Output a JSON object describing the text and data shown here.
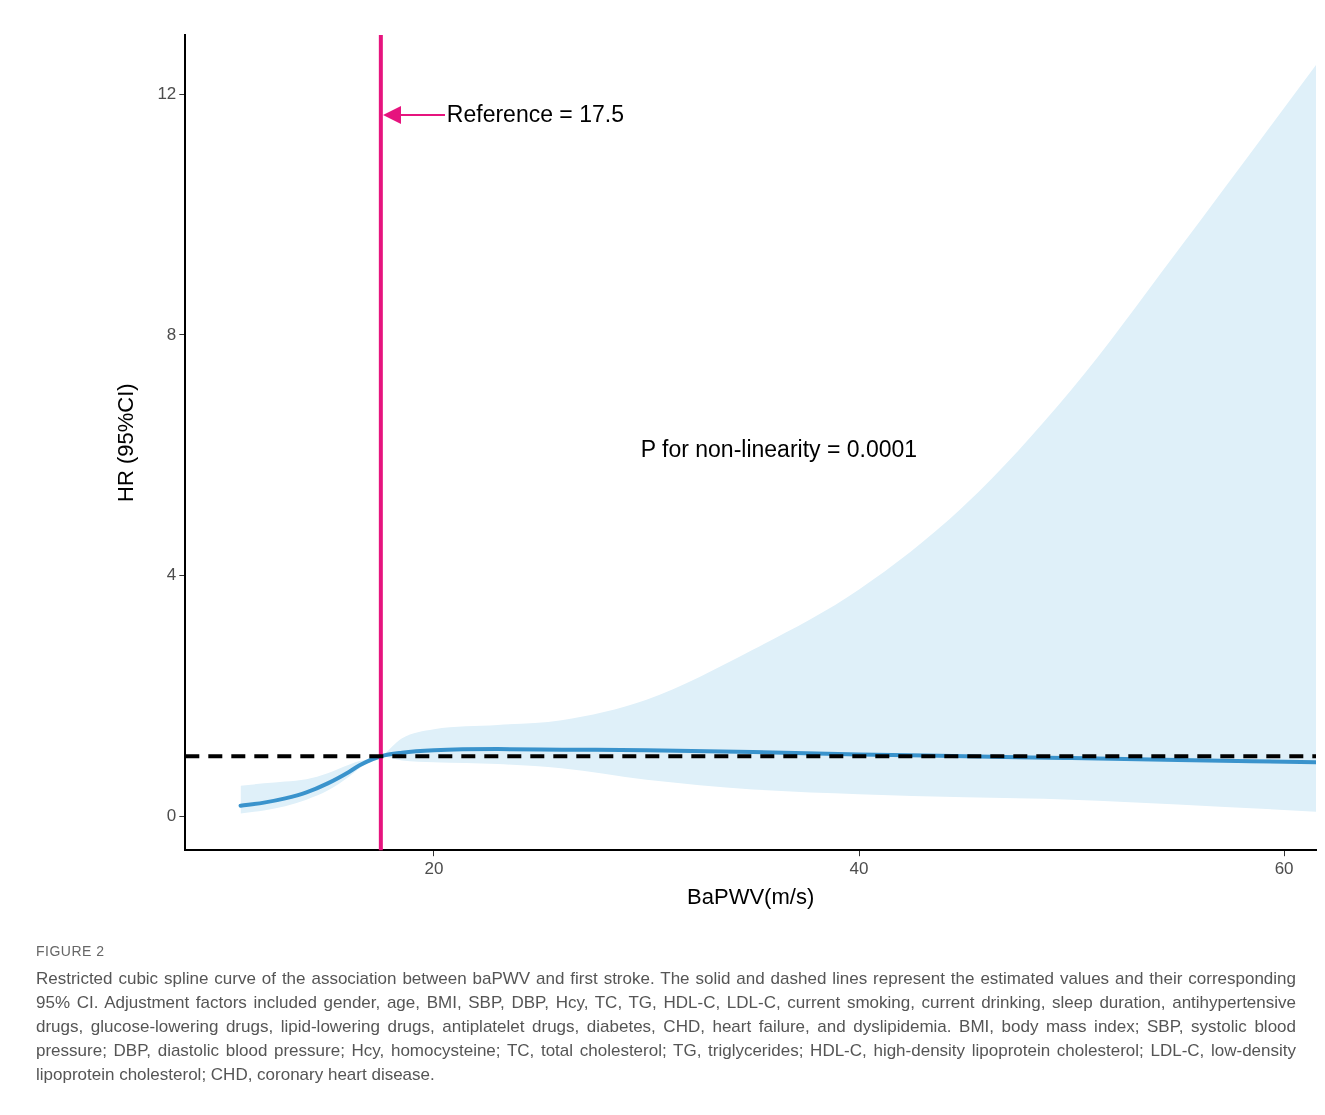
{
  "chart_data": {
    "type": "line",
    "xlabel": "BaPWV(m/s)",
    "ylabel": "HR (95%CI)",
    "xlim": [
      8.3,
      61.5
    ],
    "xticks": [
      20,
      40,
      60
    ],
    "ylim": [
      -0.56,
      12.98
    ],
    "yticks": [
      0,
      4,
      8,
      12
    ],
    "grid": false,
    "legend": false,
    "marker": "none",
    "line_style": "solid",
    "series": [
      {
        "color": "#3a93cc",
        "x": [
          10.9,
          12,
          13,
          14,
          15,
          16,
          16.5,
          17.5,
          18.5,
          20,
          23,
          26,
          30,
          35,
          40,
          45,
          50,
          55,
          61.5
        ],
        "values": [
          0.18,
          0.23,
          0.3,
          0.4,
          0.55,
          0.74,
          0.85,
          1.0,
          1.06,
          1.1,
          1.12,
          1.11,
          1.1,
          1.07,
          1.03,
          1.0,
          0.97,
          0.94,
          0.9
        ],
        "lower": [
          0.05,
          0.1,
          0.17,
          0.28,
          0.43,
          0.66,
          0.8,
          1.0,
          0.93,
          0.9,
          0.87,
          0.8,
          0.61,
          0.45,
          0.37,
          0.32,
          0.28,
          0.2,
          0.08
        ],
        "upper": [
          0.51,
          0.55,
          0.58,
          0.62,
          0.72,
          0.86,
          0.92,
          1.0,
          1.3,
          1.45,
          1.52,
          1.6,
          1.94,
          2.77,
          3.77,
          5.18,
          7.09,
          9.4,
          12.48
        ]
      }
    ],
    "ref_lines": [
      {
        "axis": "x",
        "value": 17.5,
        "label": "Reference = 17.5",
        "color": "#e6147e",
        "line_style": "solid"
      },
      {
        "axis": "y",
        "value": 1,
        "color": "#000000",
        "line_style": "dashed"
      }
    ],
    "annotations": [
      "P for non-linearity = 0.0001",
      "FIGURE 2",
      "Restricted cubic spline curve of the association between baPWV and first stroke. The solid and dashed lines represent the estimated values and their corresponding 95% CI. Adjustment factors included gender, age, BMI, SBP, DBP, Hcy, TC, TG, HDL-C, LDL-C, current smoking, current drinking, sleep duration, antihypertensive drugs, glucose-lowering drugs, lipid-lowering drugs, antiplatelet drugs, diabetes, CHD, heart failure, and dyslipidemia. BMI, body mass index; SBP, systolic blood pressure; DBP, diastolic blood pressure; Hcy, homocysteine; TC, total cholesterol; TG, triglycerides; HDL-C, high-density lipoprotein cholesterol; LDL-C, low-density lipoprotein cholesterol; CHD, coronary heart disease."
    ]
  }
}
